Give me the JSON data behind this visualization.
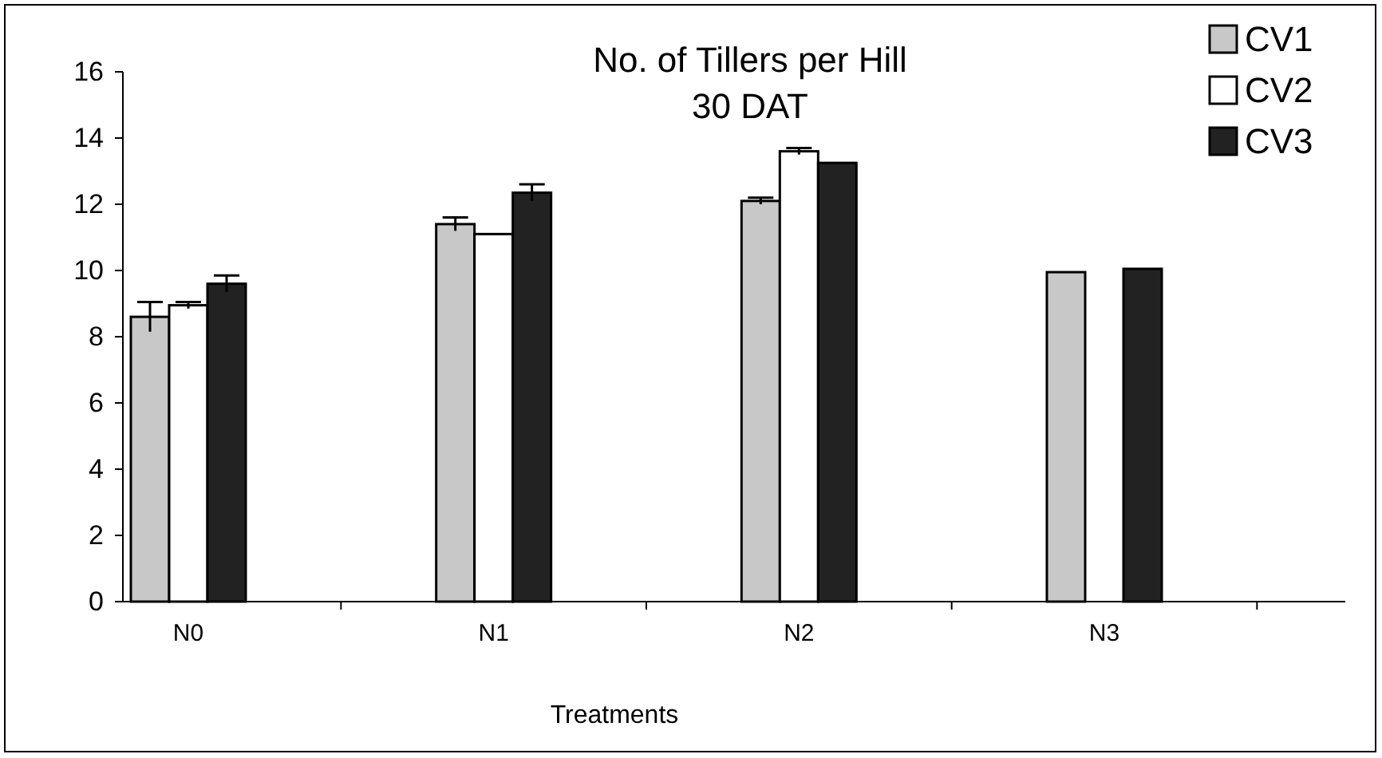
{
  "chart_data": {
    "type": "bar",
    "title": "No. of Tillers per Hill",
    "subtitle": "30 DAT",
    "xlabel": "Treatments",
    "categories": [
      "N0",
      "N1",
      "N2",
      "N3"
    ],
    "series": [
      {
        "name": "CV1",
        "color": "#c8c8c8",
        "values": [
          8.6,
          11.4,
          12.1,
          9.95
        ],
        "errors": [
          0.45,
          0.2,
          0.1,
          null
        ]
      },
      {
        "name": "CV2",
        "color": "#ffffff",
        "values": [
          8.95,
          11.1,
          13.6,
          null
        ],
        "errors": [
          0.1,
          null,
          0.1,
          null
        ]
      },
      {
        "name": "CV3",
        "color": "#222222",
        "values": [
          9.6,
          12.35,
          13.25,
          10.05
        ],
        "errors": [
          0.25,
          0.25,
          null,
          null
        ]
      }
    ],
    "ylim": [
      0,
      16
    ],
    "yticks": [
      0,
      2,
      4,
      6,
      8,
      10,
      12,
      14,
      16
    ],
    "legend": "top right"
  }
}
